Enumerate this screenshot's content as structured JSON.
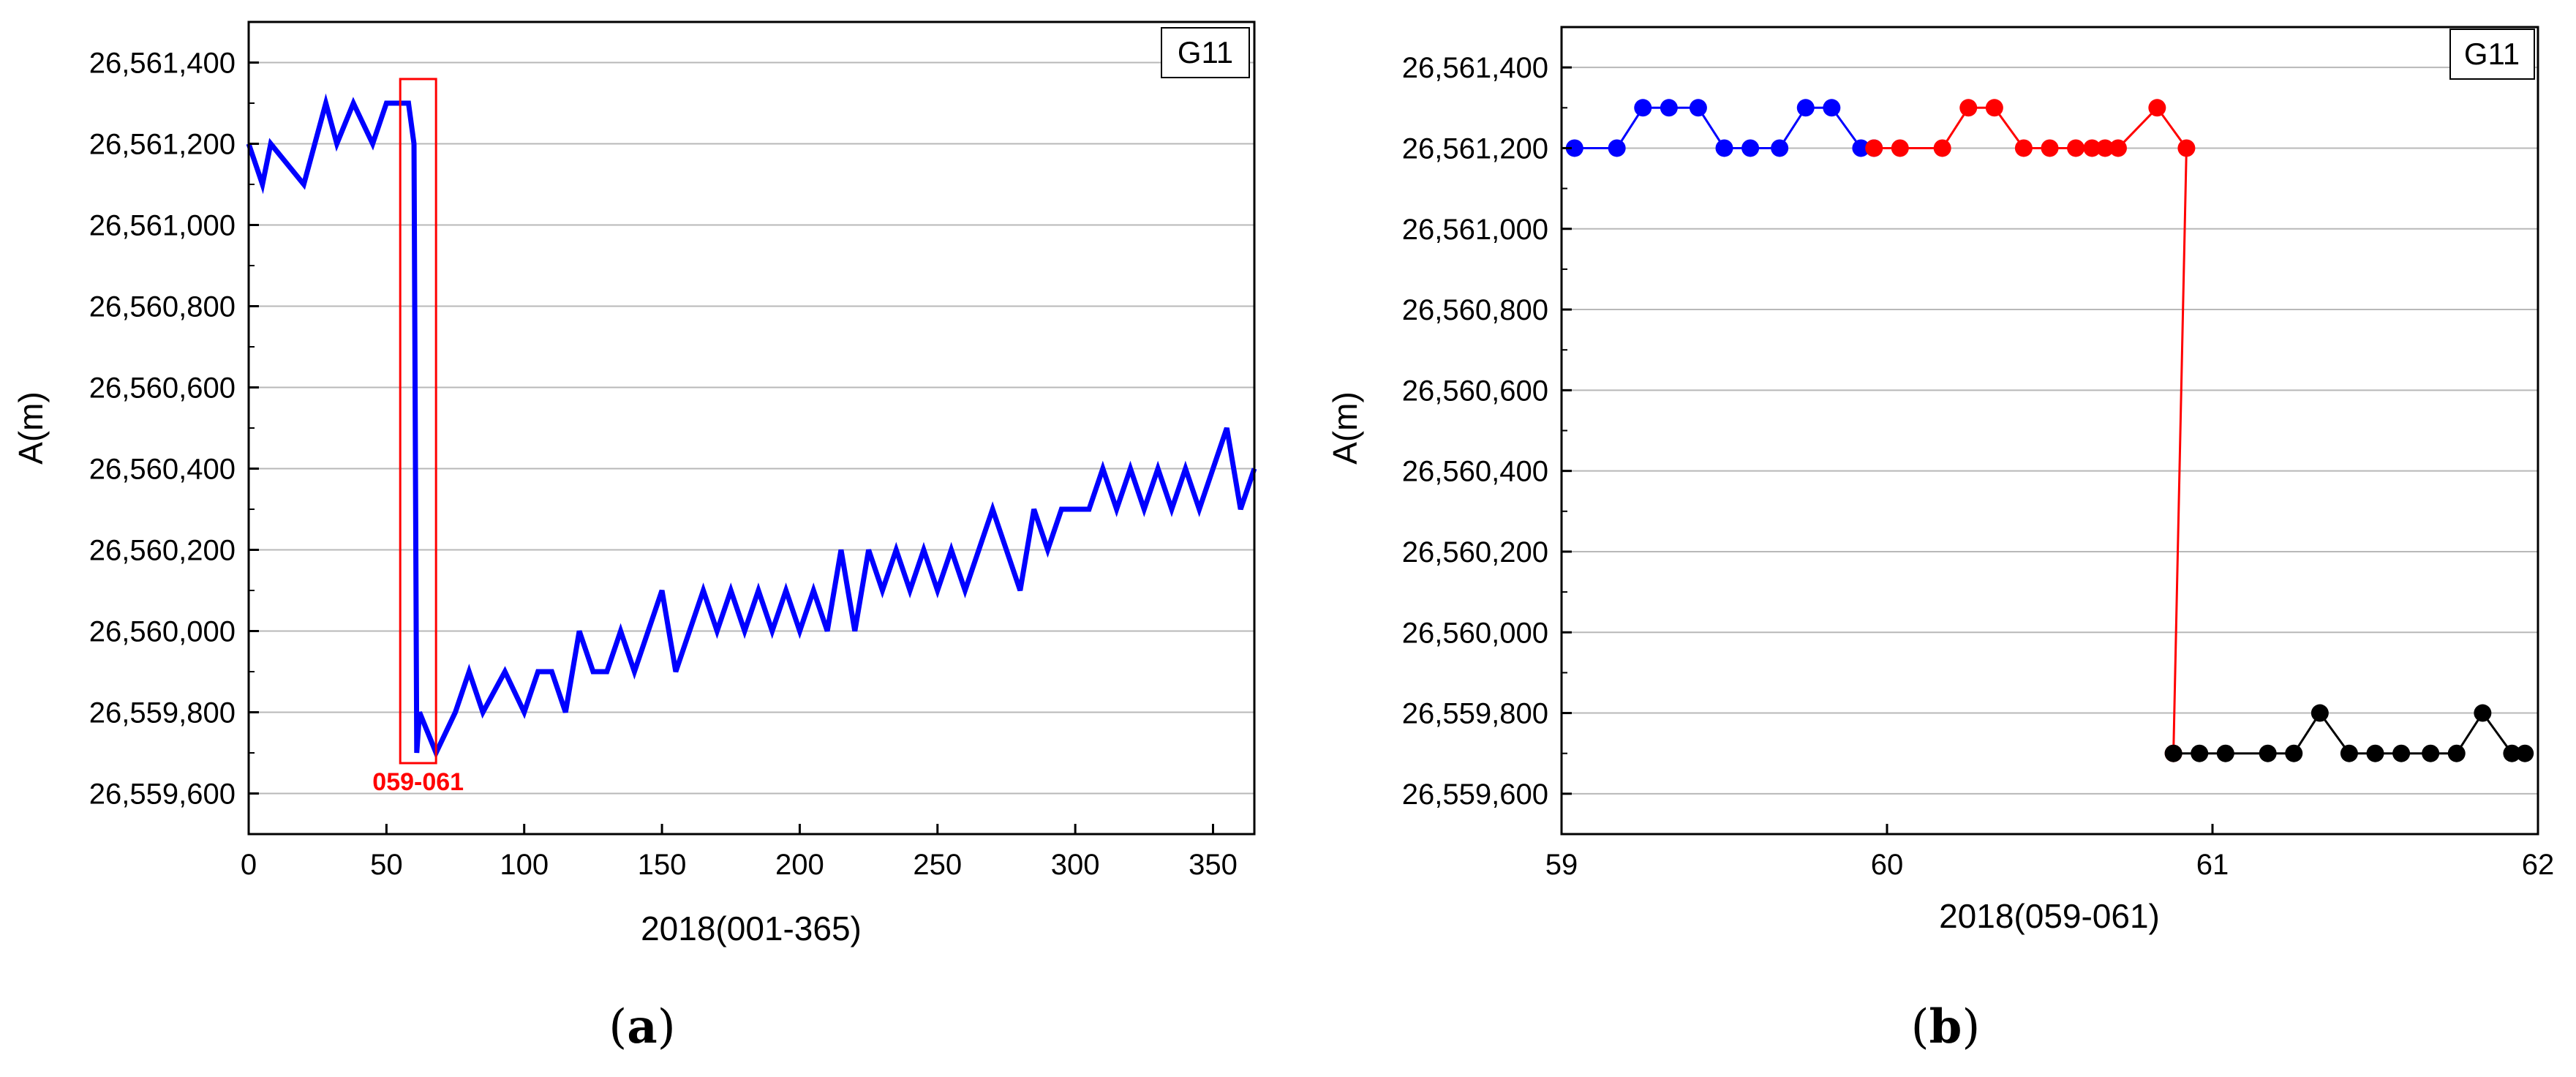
{
  "chart_data": [
    {
      "panel": "(a)",
      "type": "line",
      "badge": "G11",
      "xlabel": "2018(001-365)",
      "ylabel": "A(m)",
      "xlim": [
        0,
        365
      ],
      "ylim": [
        26559500,
        26561500
      ],
      "xticks": [
        0,
        50,
        100,
        150,
        200,
        250,
        300,
        350
      ],
      "yticks": [
        26559600,
        26559800,
        26560000,
        26560200,
        26560400,
        26560600,
        26560800,
        26561000,
        26561200,
        26561400
      ],
      "grid": "horizontal",
      "annotation": {
        "label": "059-061",
        "x_range": [
          55,
          68
        ],
        "color": "#ff0000"
      },
      "series": [
        {
          "color": "#0000ff",
          "x": [
            0,
            5,
            8,
            20,
            28,
            32,
            38,
            45,
            50,
            55,
            58,
            60,
            61,
            62,
            68,
            75,
            80,
            85,
            93,
            100,
            105,
            110,
            115,
            120,
            125,
            130,
            135,
            140,
            145,
            150,
            155,
            160,
            165,
            170,
            175,
            180,
            185,
            190,
            195,
            200,
            205,
            210,
            215,
            220,
            225,
            230,
            235,
            240,
            245,
            250,
            255,
            260,
            265,
            270,
            275,
            280,
            285,
            290,
            295,
            300,
            305,
            310,
            315,
            320,
            325,
            330,
            335,
            340,
            345,
            350,
            355,
            360,
            365
          ],
          "y": [
            26561200,
            26561100,
            26561200,
            26561100,
            26561300,
            26561200,
            26561300,
            26561200,
            26561300,
            26561300,
            26561300,
            26561200,
            26559700,
            26559800,
            26559700,
            26559800,
            26559900,
            26559800,
            26559900,
            26559800,
            26559900,
            26559900,
            26559800,
            26560000,
            26559900,
            26559900,
            26560000,
            26559900,
            26560000,
            26560100,
            26559900,
            26560000,
            26560100,
            26560000,
            26560100,
            26560000,
            26560100,
            26560000,
            26560100,
            26560000,
            26560100,
            26560000,
            26560200,
            26560000,
            26560200,
            26560100,
            26560200,
            26560100,
            26560200,
            26560100,
            26560200,
            26560100,
            26560200,
            26560300,
            26560200,
            26560100,
            26560300,
            26560200,
            26560300,
            26560300,
            26560300,
            26560400,
            26560300,
            26560400,
            26560300,
            26560400,
            26560300,
            26560400,
            26560300,
            26560400,
            26560500,
            26560300,
            26560400
          ]
        }
      ]
    },
    {
      "panel": "(b)",
      "type": "line",
      "badge": "G11",
      "xlabel": "2018(059-061)",
      "ylabel": "A(m)",
      "xlim": [
        59,
        62
      ],
      "ylim": [
        26559500,
        26561500
      ],
      "xticks": [
        59,
        60,
        61,
        62
      ],
      "yticks": [
        26559600,
        26559800,
        26560000,
        26560200,
        26560400,
        26560600,
        26560800,
        26561000,
        26561200,
        26561400
      ],
      "grid": "horizontal",
      "series": [
        {
          "color": "#0000ff",
          "x": [
            59.04,
            59.17,
            59.25,
            59.33,
            59.42,
            59.5,
            59.58,
            59.67,
            59.75,
            59.83,
            59.92,
            59.96
          ],
          "y": [
            26561200,
            26561200,
            26561300,
            26561300,
            26561300,
            26561200,
            26561200,
            26561200,
            26561300,
            26561300,
            26561200,
            26561200
          ]
        },
        {
          "color": "#ff0000",
          "x": [
            59.96,
            60.04,
            60.17,
            60.25,
            60.33,
            60.42,
            60.5,
            60.58,
            60.63,
            60.67,
            60.71,
            60.83,
            60.92,
            60.88
          ],
          "y": [
            26561200,
            26561200,
            26561200,
            26561300,
            26561300,
            26561200,
            26561200,
            26561200,
            26561200,
            26561200,
            26561200,
            26561300,
            26561200,
            26559700
          ]
        },
        {
          "color": "#000000",
          "x": [
            60.88,
            60.96,
            61.04,
            61.17,
            61.25,
            61.33,
            61.42,
            61.5,
            61.58,
            61.67,
            61.75,
            61.83,
            61.92,
            61.96
          ],
          "y": [
            26559700,
            26559700,
            26559700,
            26559700,
            26559700,
            26559800,
            26559700,
            26559700,
            26559700,
            26559700,
            26559700,
            26559800,
            26559700,
            26559700
          ]
        }
      ]
    }
  ]
}
